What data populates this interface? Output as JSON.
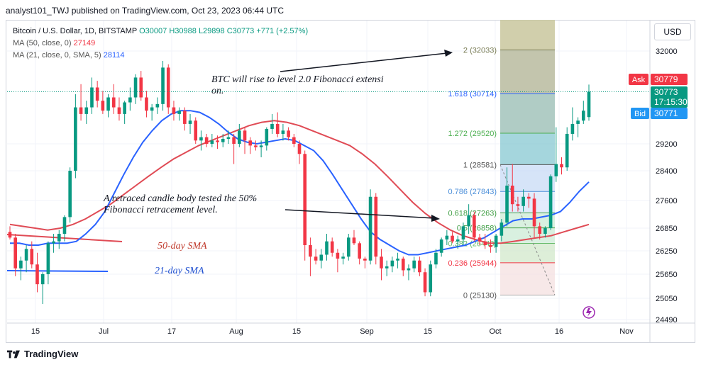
{
  "header": {
    "text": "analyst101_TWJ published on TradingView.com, Oct 23, 2023 06:44 UTC"
  },
  "legend": {
    "symbol": "Bitcoin / U.S. Dollar, 1D, BITSTAMP",
    "ohlc": {
      "o": "O30007",
      "h": "H30988",
      "l": "L29898",
      "c": "C30773",
      "chg": "+771 (+2.57%)"
    },
    "ma50_label": "MA (50, close, 0)",
    "ma50_value": "27149",
    "ma21_label": "MA (21, close, 0, SMA, 5)",
    "ma21_value": "28114"
  },
  "currency": "USD",
  "footer": {
    "brand": "TradingView"
  },
  "colors": {
    "up": "#089981",
    "down": "#f23645",
    "ma50": "#e04b55",
    "ma21": "#2962ff"
  },
  "chart_data": {
    "type": "candlestick",
    "y_ticks": [
      "32000",
      "29200",
      "28400",
      "27600",
      "26850",
      "26250",
      "25650",
      "25050",
      "24490"
    ],
    "x_ticks": [
      "15",
      "Jul",
      "17",
      "Aug",
      "15",
      "Sep",
      "15",
      "Oct",
      "16",
      "Nov"
    ],
    "ylim": [
      24490,
      33100
    ],
    "price_labels": {
      "ask": {
        "label": "Ask",
        "value": "30779"
      },
      "last": {
        "value": "30773",
        "countdown": "17:15:30"
      },
      "bid": {
        "label": "Bid",
        "value": "30771"
      }
    },
    "fibonacci_levels": [
      {
        "ratio": "2",
        "price": "32033",
        "value": 32033
      },
      {
        "ratio": "1.618",
        "price": "30714",
        "value": 30714
      },
      {
        "ratio": "1.272",
        "price": "29520",
        "value": 29520
      },
      {
        "ratio": "1",
        "price": "28581",
        "value": 28581
      },
      {
        "ratio": "0.786",
        "price": "27843",
        "value": 27843
      },
      {
        "ratio": "0.618",
        "price": "27263",
        "value": 27263
      },
      {
        "ratio": "0.5",
        "price": "26858",
        "value": 26858
      },
      {
        "ratio": "0.382",
        "price": "26448",
        "value": 26448
      },
      {
        "ratio": "0.236",
        "price": "25944",
        "value": 25944
      },
      {
        "ratio": "0",
        "price": "25130",
        "value": 25130
      }
    ],
    "annotations": {
      "fib_extension": "BTC will rise to level 2.0 Fibonacci extension.",
      "retracement_l1": "A retraced candle body tested the 50%",
      "retracement_l2": "Fibonacci retracement level.",
      "ma50_label": "50-day SMA",
      "ma21_label": "21-day SMA"
    },
    "series": [
      {
        "name": "MA (50, close, 0)"
      },
      {
        "name": "MA (21, close, 0, SMA, 5)"
      }
    ],
    "candles": [
      [
        26750,
        26900,
        26550,
        26600
      ],
      [
        26600,
        26700,
        25600,
        25800
      ],
      [
        25800,
        26100,
        25500,
        26000
      ],
      [
        26000,
        26400,
        25700,
        26300
      ],
      [
        26300,
        26500,
        25800,
        25900
      ],
      [
        25900,
        26200,
        25200,
        25400
      ],
      [
        25400,
        25700,
        24900,
        25650
      ],
      [
        25650,
        26500,
        25400,
        26450
      ],
      [
        26450,
        26700,
        26200,
        26500
      ],
      [
        26500,
        26800,
        26300,
        26700
      ],
      [
        26700,
        27200,
        26500,
        27150
      ],
      [
        27150,
        28500,
        27000,
        28400
      ],
      [
        28400,
        30700,
        28200,
        30300
      ],
      [
        30300,
        31000,
        29900,
        30100
      ],
      [
        30100,
        30500,
        29800,
        30300
      ],
      [
        30300,
        31200,
        30100,
        30900
      ],
      [
        30900,
        31100,
        30300,
        30500
      ],
      [
        30500,
        30800,
        30100,
        30200
      ],
      [
        30200,
        30700,
        30000,
        30600
      ],
      [
        30600,
        31000,
        30100,
        30300
      ],
      [
        30300,
        30600,
        29900,
        30100
      ],
      [
        30100,
        30500,
        29800,
        30450
      ],
      [
        30450,
        30900,
        30200,
        30600
      ],
      [
        30600,
        31300,
        30400,
        31200
      ],
      [
        31200,
        31400,
        30500,
        30600
      ],
      [
        30600,
        30800,
        30000,
        30200
      ],
      [
        30200,
        30400,
        29900,
        30300
      ],
      [
        30300,
        30600,
        30100,
        30400
      ],
      [
        30400,
        31700,
        30200,
        31500
      ],
      [
        31500,
        31600,
        30100,
        30300
      ],
      [
        30300,
        30500,
        29900,
        30100
      ],
      [
        30100,
        30300,
        29900,
        30200
      ],
      [
        30200,
        30300,
        29600,
        29800
      ],
      [
        29800,
        30100,
        29500,
        29900
      ],
      [
        29900,
        30000,
        29200,
        29300
      ],
      [
        29300,
        29600,
        29000,
        29400
      ],
      [
        29400,
        29500,
        29100,
        29200
      ],
      [
        29200,
        29500,
        29100,
        29300
      ],
      [
        29300,
        29450,
        29050,
        29250
      ],
      [
        29250,
        29500,
        29100,
        29350
      ],
      [
        29350,
        29600,
        29200,
        29400
      ],
      [
        29400,
        29500,
        28600,
        29200
      ],
      [
        29200,
        29800,
        29100,
        29600
      ],
      [
        29600,
        29700,
        28900,
        29300
      ],
      [
        29300,
        29400,
        28900,
        29150
      ],
      [
        29150,
        29300,
        29000,
        29100
      ],
      [
        29100,
        29300,
        28800,
        29150
      ],
      [
        29150,
        29700,
        29000,
        29650
      ],
      [
        29650,
        30100,
        29500,
        29800
      ],
      [
        29800,
        30150,
        29400,
        29500
      ],
      [
        29500,
        29800,
        29300,
        29600
      ],
      [
        29600,
        29700,
        29300,
        29400
      ],
      [
        29400,
        29500,
        29100,
        29200
      ],
      [
        29200,
        29300,
        28600,
        28900
      ],
      [
        28900,
        29000,
        26000,
        26400
      ],
      [
        26400,
        26600,
        25600,
        26100
      ],
      [
        26100,
        26300,
        25900,
        26000
      ],
      [
        26000,
        26300,
        25800,
        26150
      ],
      [
        26150,
        26700,
        26000,
        26500
      ],
      [
        26500,
        26600,
        26100,
        26200
      ],
      [
        26200,
        26300,
        25700,
        26050
      ],
      [
        26050,
        26200,
        25900,
        26100
      ],
      [
        26100,
        26700,
        26000,
        26600
      ],
      [
        26600,
        26800,
        26400,
        26450
      ],
      [
        26450,
        26500,
        25900,
        26050
      ],
      [
        26050,
        26100,
        25800,
        26000
      ],
      [
        26000,
        27900,
        25900,
        27700
      ],
      [
        27700,
        27800,
        25900,
        26100
      ],
      [
        26100,
        26300,
        25500,
        25800
      ],
      [
        25800,
        26000,
        25600,
        25850
      ],
      [
        25850,
        26100,
        25700,
        26000
      ],
      [
        26000,
        26200,
        25800,
        26050
      ],
      [
        26050,
        26100,
        25600,
        25750
      ],
      [
        25750,
        25900,
        25500,
        25800
      ],
      [
        25800,
        26100,
        25700,
        26000
      ],
      [
        26000,
        26100,
        25600,
        25700
      ],
      [
        25700,
        25800,
        25100,
        25200
      ],
      [
        25200,
        26000,
        25100,
        25900
      ],
      [
        25900,
        26300,
        25800,
        26200
      ],
      [
        26200,
        26600,
        26100,
        26550
      ],
      [
        26550,
        26800,
        26400,
        26650
      ],
      [
        26650,
        26750,
        26450,
        26500
      ],
      [
        26500,
        26650,
        26300,
        26550
      ],
      [
        26550,
        27000,
        26400,
        26900
      ],
      [
        26900,
        27500,
        26700,
        27200
      ],
      [
        27200,
        27300,
        26500,
        26600
      ],
      [
        26600,
        26700,
        26400,
        26500
      ],
      [
        26500,
        26700,
        26300,
        26400
      ],
      [
        26400,
        26550,
        26200,
        26350
      ],
      [
        26350,
        26700,
        26200,
        26650
      ],
      [
        26650,
        27100,
        26500,
        27000
      ],
      [
        27000,
        28500,
        26900,
        28000
      ],
      [
        28000,
        28600,
        27300,
        27500
      ],
      [
        27500,
        27700,
        27300,
        27450
      ],
      [
        27450,
        27900,
        27300,
        27700
      ],
      [
        27700,
        27800,
        27400,
        27650
      ],
      [
        27650,
        27800,
        26600,
        26900
      ],
      [
        26900,
        27000,
        26550,
        26700
      ],
      [
        26700,
        26900,
        26600,
        26850
      ],
      [
        26850,
        28300,
        26800,
        28250
      ],
      [
        28250,
        29700,
        28100,
        28600
      ],
      [
        28600,
        28800,
        28300,
        28500
      ],
      [
        28500,
        29700,
        28400,
        29500
      ],
      [
        29500,
        30300,
        29300,
        29800
      ],
      [
        29800,
        30000,
        29400,
        29900
      ],
      [
        29900,
        30500,
        29800,
        30200
      ],
      [
        30007,
        30988,
        29898,
        30773
      ]
    ],
    "ma21": [
      26450,
      26450,
      26400,
      26400,
      26450,
      26450,
      26450,
      26500,
      26700,
      26950,
      27300,
      27800,
      28300,
      28800,
      29250,
      29600,
      29900,
      30100,
      30200,
      30200,
      30150,
      30000,
      29800,
      29550,
      29350,
      29250,
      29200,
      29250,
      29300,
      29350,
      29300,
      29150,
      29000,
      28700,
      28300,
      27900,
      27500,
      27100,
      26750,
      26550,
      26400,
      26250,
      26150,
      26150,
      26200,
      26250,
      26300,
      26350,
      26400,
      26500,
      26600,
      26750,
      26900,
      27050,
      27100,
      27100,
      27150,
      27200,
      27300,
      27550,
      27850,
      28100
    ],
    "ma50": [
      26950,
      26900,
      26850,
      26800,
      26850,
      26950,
      27100,
      27300,
      27500,
      27750,
      28000,
      28250,
      28500,
      28750,
      28950,
      29150,
      29300,
      29450,
      29600,
      29750,
      29850,
      29900,
      29850,
      29750,
      29600,
      29450,
      29300,
      29150,
      28900,
      28600,
      28250,
      27900,
      27550,
      27250,
      27000,
      26800,
      26650,
      26550,
      26450,
      26450,
      26500,
      26550,
      26600,
      26650,
      26750,
      26850,
      26950
    ]
  }
}
